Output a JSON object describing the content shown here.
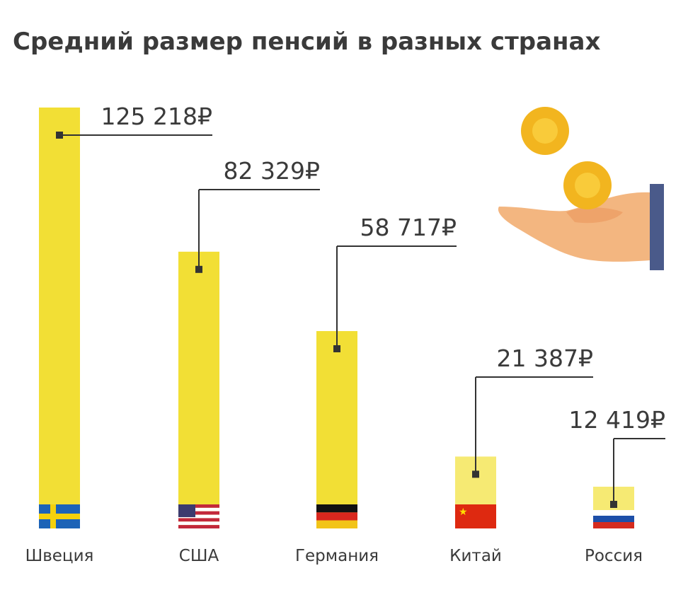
{
  "chart_data": {
    "type": "bar",
    "title": "Средний размер пенсий в разных странах",
    "unit": "₽",
    "categories": [
      "Швеция",
      "США",
      "Германия",
      "Китай",
      "Россия"
    ],
    "values": [
      125218,
      82329,
      58717,
      21387,
      12419
    ],
    "value_labels": [
      "125 218₽",
      "82 329₽",
      "58 717₽",
      "21 387₽",
      "12 419₽"
    ],
    "flags": [
      "sweden-flag",
      "usa-flag",
      "germany-flag",
      "china-flag",
      "russia-flag"
    ],
    "colors": {
      "bar": "#F2DF35",
      "bar_light": "#F6EA73",
      "text": "#3a3a3a",
      "leader": "#333333",
      "coin": "#F2B51F",
      "hand": "#F3B680",
      "cuff": "#4A5A8A"
    },
    "decoration": "hand-with-coins-icon"
  }
}
